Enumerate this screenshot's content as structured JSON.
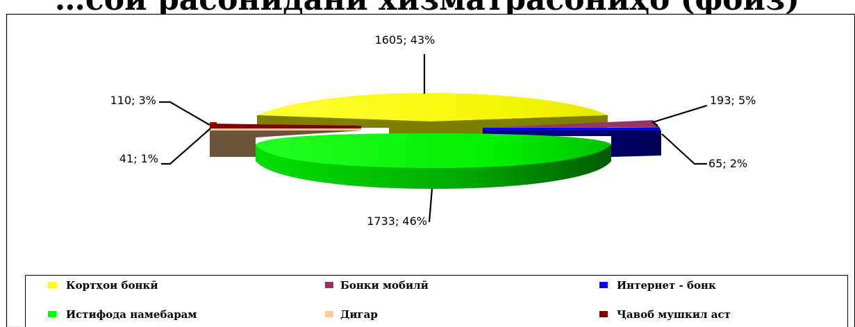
{
  "chart_data": {
    "type": "pie",
    "title": "",
    "slices": [
      {
        "label": "Кортҳои бонкӣ",
        "value": 1605,
        "percent": "43%",
        "data_label": "1605; 43%",
        "color": "#ffff00"
      },
      {
        "label": "Бонки мобилӣ",
        "value": 193,
        "percent": "5%",
        "data_label": "193; 5%",
        "color": "#993366"
      },
      {
        "label": "Интернет - бонк",
        "value": 65,
        "percent": "2%",
        "data_label": "65; 2%",
        "color": "#0000ff"
      },
      {
        "label": "Истифода намебарам",
        "value": 1733,
        "percent": "46%",
        "data_label": "1733; 46%",
        "color": "#00ff00"
      },
      {
        "label": "Дигар",
        "value": 41,
        "percent": "1%",
        "data_label": "41; 1%",
        "color": "#ffcc99"
      },
      {
        "label": "Ҷавоб мушкил аст",
        "value": 110,
        "percent": "3%",
        "data_label": "110; 3%",
        "color": "#800000"
      }
    ],
    "legend_position": "bottom",
    "three_d": true,
    "exploded": true
  },
  "cropped_title_fragment": "…сои расонидани хизматрасониҳо (фоиз)"
}
